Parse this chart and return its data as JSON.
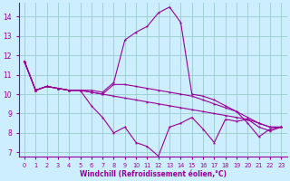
{
  "xlabel": "Windchill (Refroidissement éolien,°C)",
  "bg_color": "#cceeff",
  "line_color": "#990099",
  "grid_color": "#99cccc",
  "xlim": [
    -0.5,
    23.5
  ],
  "ylim": [
    6.8,
    14.7
  ],
  "yticks": [
    7,
    8,
    9,
    10,
    11,
    12,
    13,
    14
  ],
  "xticks": [
    0,
    1,
    2,
    3,
    4,
    5,
    6,
    7,
    8,
    9,
    10,
    11,
    12,
    13,
    14,
    15,
    16,
    17,
    18,
    19,
    20,
    21,
    22,
    23
  ],
  "series": [
    [
      11.7,
      10.2,
      10.4,
      10.3,
      10.2,
      10.2,
      9.4,
      8.8,
      8.0,
      8.3,
      7.5,
      7.3,
      6.8,
      8.3,
      8.5,
      8.8,
      8.2,
      7.5,
      8.7,
      8.6,
      8.7,
      8.3,
      8.1,
      8.3
    ],
    [
      11.7,
      10.2,
      10.4,
      10.3,
      10.2,
      10.2,
      10.2,
      10.1,
      10.6,
      12.8,
      13.2,
      13.5,
      14.2,
      14.5,
      13.7,
      10.0,
      9.9,
      9.7,
      9.4,
      9.1,
      8.5,
      7.8,
      8.2,
      8.3
    ],
    [
      11.7,
      10.2,
      10.4,
      10.3,
      10.2,
      10.2,
      10.1,
      10.0,
      10.5,
      10.5,
      10.4,
      10.3,
      10.2,
      10.1,
      10.0,
      9.9,
      9.7,
      9.5,
      9.3,
      9.1,
      8.8,
      8.5,
      8.3,
      8.3
    ],
    [
      11.7,
      10.2,
      10.4,
      10.3,
      10.2,
      10.2,
      10.1,
      10.0,
      9.9,
      9.8,
      9.7,
      9.6,
      9.5,
      9.4,
      9.3,
      9.2,
      9.1,
      9.0,
      8.9,
      8.8,
      8.7,
      8.5,
      8.3,
      8.3
    ]
  ]
}
